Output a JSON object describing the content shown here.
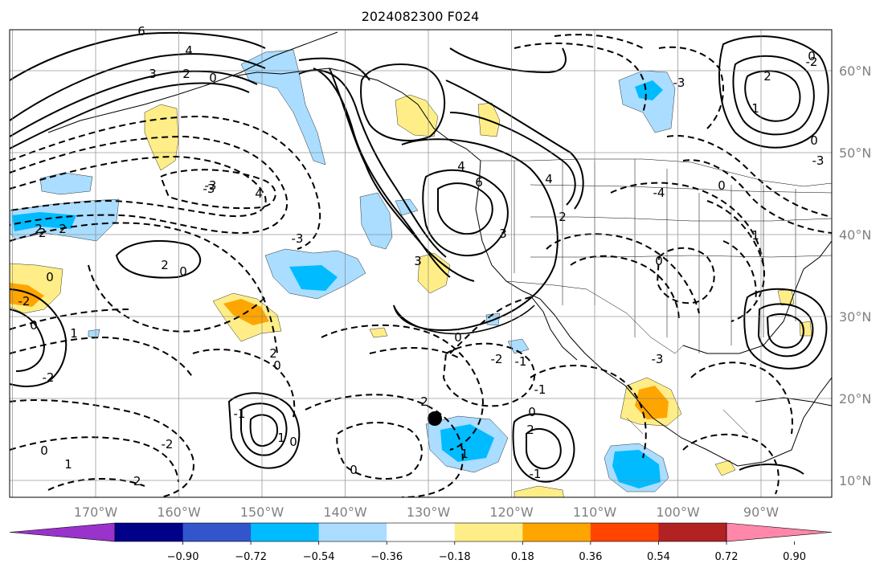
{
  "title": "2024082300 F024",
  "map": {
    "lon_range": [
      -180,
      -80
    ],
    "lat_range": [
      8,
      65
    ],
    "lon_labels": [
      "170°W",
      "160°W",
      "150°W",
      "140°W",
      "130°W",
      "120°W",
      "110°W",
      "100°W",
      "90°W"
    ],
    "lat_labels": [
      "60°N",
      "50°N",
      "40°N",
      "30°N",
      "20°N",
      "10°N"
    ],
    "gridlines": true,
    "contour_labels": [
      "6",
      "4",
      "3",
      "2",
      "0",
      "-3",
      "4",
      "6",
      "-2",
      "-3",
      "4",
      "-3",
      "0",
      "-2",
      "2",
      "1",
      "0",
      "-3",
      "-4",
      "0",
      "1",
      "4",
      "3",
      "3",
      "2",
      "-3",
      "2",
      "2",
      "-2",
      "-3",
      "0",
      "-2",
      "0",
      "2",
      "0",
      "-2",
      "1",
      "0",
      "0",
      "-1",
      "1",
      "2",
      "0",
      "2",
      "-1",
      "-1",
      "1",
      "0",
      "2",
      "-1",
      "0",
      "-2",
      "0",
      "1",
      "-2",
      "0"
    ],
    "marker": {
      "lon": -129.5,
      "lat": 17.5
    }
  },
  "colorbar": {
    "tick_labels": [
      "−0.90",
      "−0.72",
      "−0.54",
      "−0.36",
      "−0.18",
      "0.18",
      "0.36",
      "0.54",
      "0.72",
      "0.90"
    ],
    "colors": [
      "#9933cc",
      "#000088",
      "#3355cc",
      "#00bbff",
      "#aaddff",
      "#ffffff",
      "#ffee88",
      "#ffa500",
      "#ff4500",
      "#b22222",
      "#ff88aa"
    ]
  }
}
